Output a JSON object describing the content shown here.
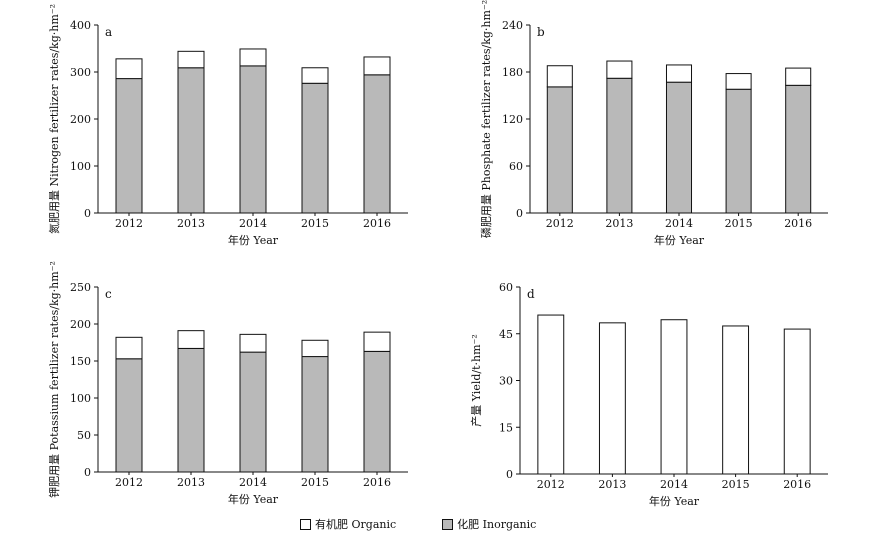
{
  "legend": {
    "organic_label": "有机肥 Organic",
    "inorganic_label": "化肥 Inorganic",
    "organic_color": "#ffffff",
    "inorganic_color": "#b9b9b9"
  },
  "chart_data": [
    {
      "panel": "a",
      "type": "bar",
      "stacked": true,
      "xlabel": "年份 Year",
      "ylabel": "氮肥用量 Nitrogen fertilizer rates/kg·hm⁻²",
      "ylim": [
        0,
        400
      ],
      "yticks": [
        0,
        100,
        200,
        300,
        400
      ],
      "categories": [
        "2012",
        "2013",
        "2014",
        "2015",
        "2016"
      ],
      "series": [
        {
          "name": "化肥 Inorganic",
          "values": [
            286,
            309,
            313,
            276,
            294
          ]
        },
        {
          "name": "有机肥 Organic",
          "values": [
            42,
            35,
            36,
            33,
            38
          ]
        }
      ]
    },
    {
      "panel": "b",
      "type": "bar",
      "stacked": true,
      "xlabel": "年份 Year",
      "ylabel": "磷肥用量 Phosphate fertilizer rates/kg·hm⁻²",
      "ylim": [
        0,
        240
      ],
      "yticks": [
        0,
        60,
        120,
        180,
        240
      ],
      "categories": [
        "2012",
        "2013",
        "2014",
        "2015",
        "2016"
      ],
      "series": [
        {
          "name": "化肥 Inorganic",
          "values": [
            161,
            172,
            167,
            158,
            163
          ]
        },
        {
          "name": "有机肥 Organic",
          "values": [
            27,
            22,
            22,
            20,
            22
          ]
        }
      ]
    },
    {
      "panel": "c",
      "type": "bar",
      "stacked": true,
      "xlabel": "年份 Year",
      "ylabel": "钾肥用量 Potassium fertilizer rates/kg·hm⁻²",
      "ylim": [
        0,
        250
      ],
      "yticks": [
        0,
        50,
        100,
        150,
        200,
        250
      ],
      "categories": [
        "2012",
        "2013",
        "2014",
        "2015",
        "2016"
      ],
      "series": [
        {
          "name": "化肥 Inorganic",
          "values": [
            153,
            167,
            162,
            156,
            163
          ]
        },
        {
          "name": "有机肥 Organic",
          "values": [
            29,
            24,
            24,
            22,
            26
          ]
        }
      ]
    },
    {
      "panel": "d",
      "type": "bar",
      "stacked": false,
      "xlabel": "年份 Year",
      "ylabel": "产量 Yield/t·hm⁻²",
      "ylim": [
        0,
        60
      ],
      "yticks": [
        0,
        15,
        30,
        45,
        60
      ],
      "categories": [
        "2012",
        "2013",
        "2014",
        "2015",
        "2016"
      ],
      "series": [
        {
          "name": "",
          "values": [
            51,
            48.5,
            49.5,
            47.5,
            46.5
          ]
        }
      ]
    }
  ]
}
